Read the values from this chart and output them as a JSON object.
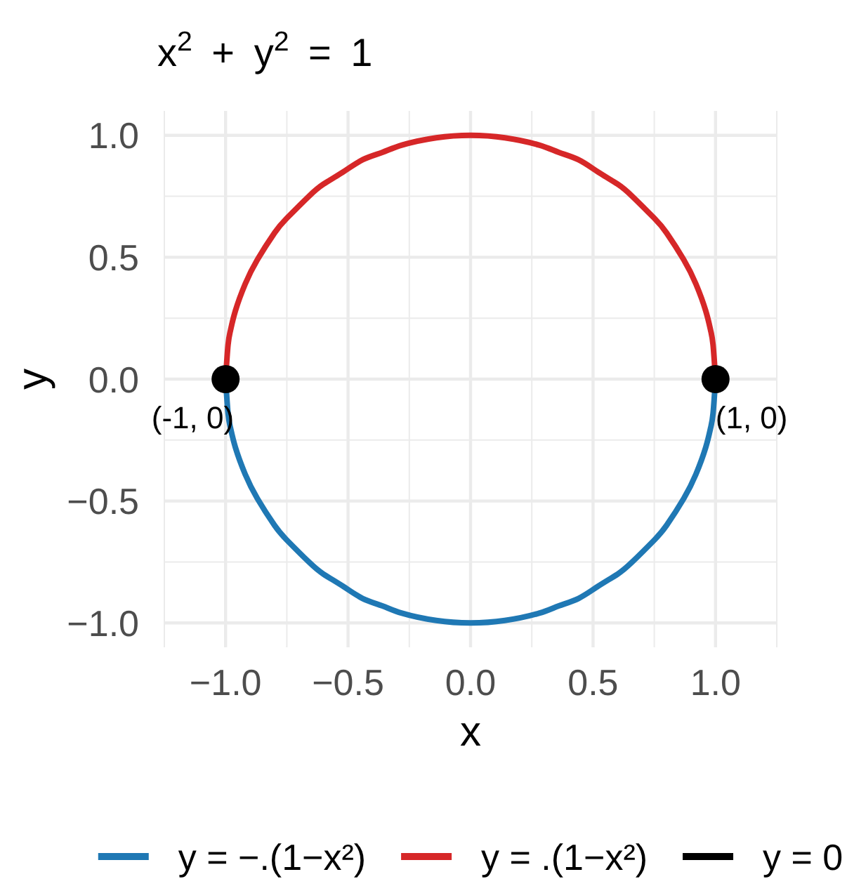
{
  "chart_data": {
    "type": "line",
    "title": "x$^{2}$ + y$^{2}$ = 1",
    "xlabel": "x",
    "ylabel": "y",
    "xlim": [
      -1.25,
      1.25
    ],
    "ylim": [
      -1.1,
      1.1
    ],
    "xticks": [
      {
        "value": -1,
        "label": "−1.0"
      },
      {
        "value": -0.5,
        "label": "−0.5"
      },
      {
        "value": 0,
        "label": "0.0"
      },
      {
        "value": 0.5,
        "label": "0.5"
      },
      {
        "value": 1,
        "label": "1.0"
      }
    ],
    "yticks": [
      {
        "value": -1,
        "label": "−1.0"
      },
      {
        "value": -0.5,
        "label": "−0.5"
      },
      {
        "value": 0,
        "label": "0.0"
      },
      {
        "value": 0.5,
        "label": "0.5"
      },
      {
        "value": 1,
        "label": "1.0"
      }
    ],
    "grid": true,
    "legend": "bottom",
    "line_style": "solid",
    "series": [
      {
        "name": "y = −.(1−x²)",
        "color": "#1f78b4",
        "x": [
          -1,
          -0.99,
          -0.98,
          -0.96,
          -0.92,
          -0.87,
          -0.8,
          -0.75,
          -0.66,
          -0.6,
          -0.52,
          -0.44,
          -0.36,
          -0.28,
          -0.14,
          0,
          0.14,
          0.28,
          0.36,
          0.44,
          0.52,
          0.6,
          0.66,
          0.75,
          0.8,
          0.87,
          0.92,
          0.96,
          0.98,
          0.99,
          1
        ],
        "values": [
          0,
          -0.14,
          -0.2,
          -0.28,
          -0.39,
          -0.49,
          -0.6,
          -0.66,
          -0.75,
          -0.8,
          -0.85,
          -0.9,
          -0.93,
          -0.96,
          -0.99,
          -1,
          -0.99,
          -0.96,
          -0.93,
          -0.9,
          -0.85,
          -0.8,
          -0.75,
          -0.66,
          -0.6,
          -0.49,
          -0.39,
          -0.28,
          -0.2,
          -0.14,
          0
        ]
      },
      {
        "name": "y = .(1−x²)",
        "color": "#d62728",
        "x": [
          -1,
          -0.99,
          -0.98,
          -0.96,
          -0.92,
          -0.87,
          -0.8,
          -0.75,
          -0.66,
          -0.6,
          -0.52,
          -0.44,
          -0.36,
          -0.28,
          -0.14,
          0,
          0.14,
          0.28,
          0.36,
          0.44,
          0.52,
          0.6,
          0.66,
          0.75,
          0.8,
          0.87,
          0.92,
          0.96,
          0.98,
          0.99,
          1
        ],
        "values": [
          0,
          0.14,
          0.2,
          0.28,
          0.39,
          0.49,
          0.6,
          0.66,
          0.75,
          0.8,
          0.85,
          0.9,
          0.93,
          0.96,
          0.99,
          1,
          0.99,
          0.96,
          0.93,
          0.9,
          0.85,
          0.8,
          0.75,
          0.66,
          0.6,
          0.49,
          0.39,
          0.28,
          0.2,
          0.14,
          0
        ]
      },
      {
        "name": "y = 0",
        "color": "#000000",
        "type": "scatter",
        "marker": "circle",
        "x": [
          -1,
          1
        ],
        "values": [
          0,
          0
        ]
      }
    ],
    "annotations": [
      {
        "text": "(-1, 0)",
        "x": -1,
        "y": 0
      },
      {
        "text": "(1, 0)",
        "x": 1,
        "y": 0
      }
    ]
  }
}
